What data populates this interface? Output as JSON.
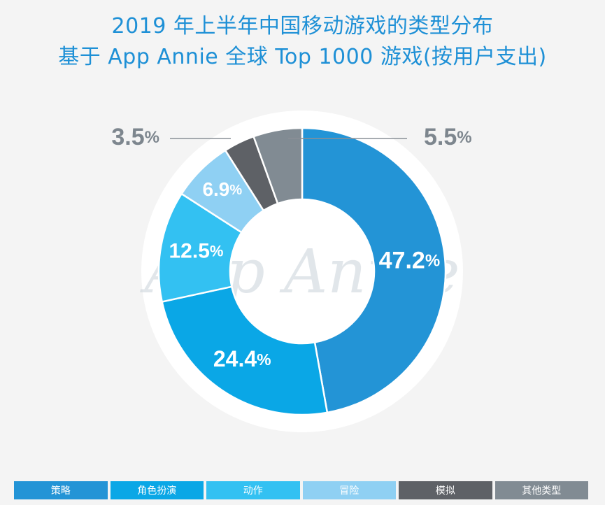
{
  "title": "2019 年上半年中国移动游戏的类型分布",
  "subtitle": "基于 App Annie 全球 Top 1000 游戏(按用户支出)",
  "watermark": "App Annie",
  "chart_data": {
    "type": "pie",
    "donut": true,
    "unit": "%",
    "categories": [
      "策略",
      "角色扮演",
      "动作",
      "冒险",
      "模拟",
      "其他类型"
    ],
    "values": [
      47.2,
      24.4,
      12.5,
      6.9,
      3.5,
      5.5
    ],
    "labels": [
      "47.2",
      "24.4",
      "12.5",
      "6.9",
      "3.5",
      "5.5"
    ],
    "colors": [
      "#2394d6",
      "#0aa7e6",
      "#33c1f2",
      "#8fd0f3",
      "#5e6166",
      "#818b93"
    ],
    "legend_position": "bottom"
  }
}
